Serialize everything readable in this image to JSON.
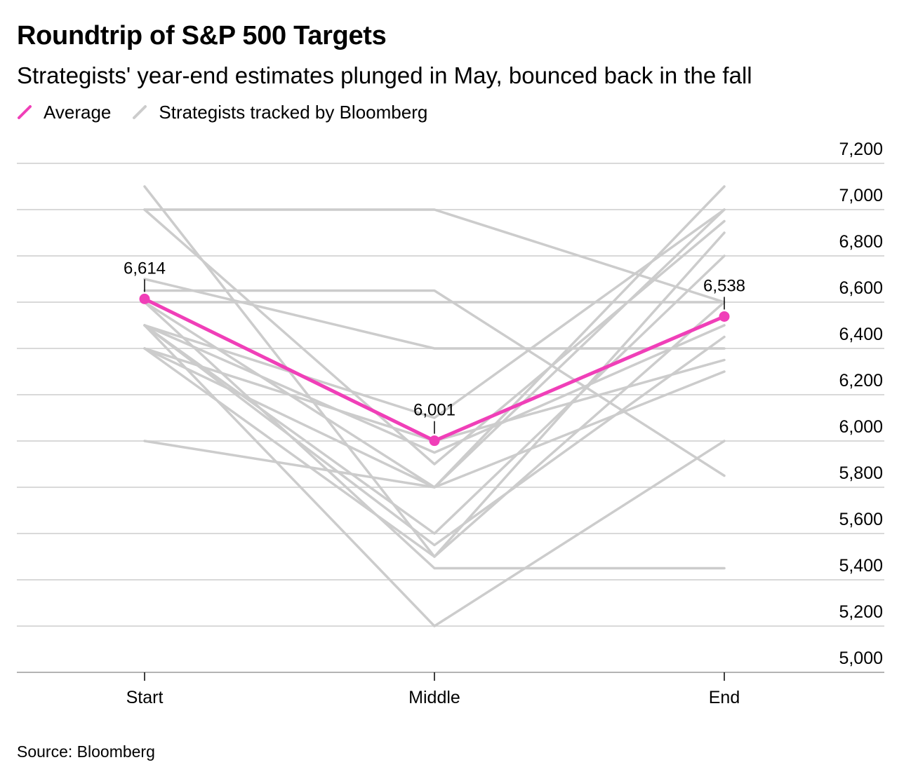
{
  "chart_data": {
    "type": "line",
    "title": "Roundtrip of S&P 500 Targets",
    "subtitle": "Strategists' year-end estimates plunged in May, bounced back in the fall",
    "source": "Source: Bloomberg",
    "categories": [
      "Start",
      "Middle",
      "End"
    ],
    "ylim": [
      5000,
      7200
    ],
    "yticks": [
      5000,
      5200,
      5400,
      5600,
      5800,
      6000,
      6200,
      6400,
      6600,
      6800,
      7000,
      7200
    ],
    "ytick_labels": [
      "5,000",
      "5,200",
      "5,400",
      "5,600",
      "5,800",
      "6,000",
      "6,200",
      "6,400",
      "6,600",
      "6,800",
      "7,000",
      "7,200"
    ],
    "legend": [
      {
        "name": "Average",
        "color": "#f03fb8"
      },
      {
        "name": "Strategists tracked by Bloomberg",
        "color": "#cccccc"
      }
    ],
    "average": {
      "name": "Average",
      "color": "#f03fb8",
      "values": [
        6614,
        6001,
        6538
      ],
      "annotations": [
        {
          "index": 0,
          "label": "6,614"
        },
        {
          "index": 1,
          "label": "6,001"
        },
        {
          "index": 2,
          "label": "6,538"
        }
      ]
    },
    "strategists_color": "#cccccc",
    "strategists": [
      {
        "values": [
          7100,
          5500,
          6600
        ]
      },
      {
        "values": [
          7000,
          7000,
          6600
        ]
      },
      {
        "values": [
          7000,
          5900,
          6950
        ]
      },
      {
        "values": [
          6700,
          6400,
          6400
        ]
      },
      {
        "values": [
          6650,
          6650,
          5850
        ]
      },
      {
        "values": [
          6600,
          6600,
          6600
        ]
      },
      {
        "values": [
          6600,
          5800,
          7000
        ]
      },
      {
        "values": [
          6500,
          5600,
          6800
        ]
      },
      {
        "values": [
          6500,
          5550,
          6450
        ]
      },
      {
        "values": [
          6500,
          5200,
          6000
        ]
      },
      {
        "values": [
          6500,
          6100,
          7000
        ]
      },
      {
        "values": [
          6400,
          5500,
          6900
        ]
      },
      {
        "values": [
          6400,
          6000,
          6350
        ]
      },
      {
        "values": [
          6400,
          5800,
          6300
        ]
      },
      {
        "values": [
          6000,
          5800,
          7100
        ]
      },
      {
        "values": [
          6600,
          5450,
          5450
        ]
      },
      {
        "values": [
          6500,
          5950,
          6500
        ]
      }
    ]
  }
}
